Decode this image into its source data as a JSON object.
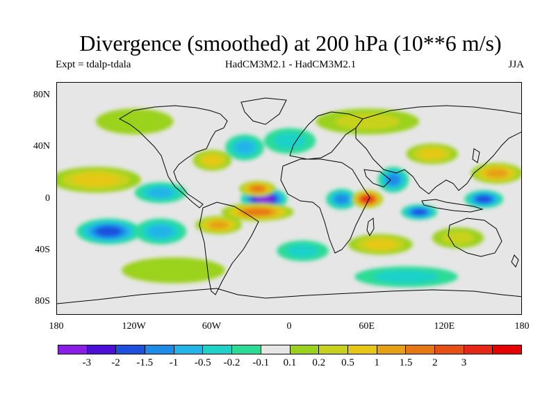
{
  "title": "Divergence (smoothed) at 200 hPa (10**6 m/s)",
  "subtitle_left": "Expt = tdalp-tdala",
  "subtitle_center": "HadCM3M2.1 - HadCM3M2.1",
  "subtitle_right": "JJA",
  "lat_ticks": [
    {
      "label": "80N",
      "value": 80
    },
    {
      "label": "40N",
      "value": 40
    },
    {
      "label": "0",
      "value": 0
    },
    {
      "label": "40S",
      "value": -40
    },
    {
      "label": "80S",
      "value": -80
    }
  ],
  "lon_ticks": [
    {
      "label": "180",
      "value": -180
    },
    {
      "label": "120W",
      "value": -120
    },
    {
      "label": "60W",
      "value": -60
    },
    {
      "label": "0",
      "value": 0
    },
    {
      "label": "60E",
      "value": 60
    },
    {
      "label": "120E",
      "value": 120
    },
    {
      "label": "180",
      "value": 180
    }
  ],
  "colorbar": {
    "colors": [
      "#8a1ee6",
      "#4b0fd8",
      "#1e50e0",
      "#1e8ce6",
      "#23b4e8",
      "#1ed2c8",
      "#2adc96",
      "#e6e6e6",
      "#9bd21e",
      "#c8d21e",
      "#e6c814",
      "#e6a014",
      "#e67814",
      "#e65014",
      "#e62814",
      "#e60000"
    ],
    "labels": [
      "-3",
      "-2",
      "-1.5",
      "-1",
      "-0.5",
      "-0.2",
      "-0.1",
      "0.1",
      "0.2",
      "0.5",
      "1",
      "1.5",
      "2",
      "3"
    ]
  },
  "map": {
    "background_color": "#e6e6e6",
    "field": [
      {
        "lon": -20,
        "lat": 0,
        "value": -3.2,
        "rx": 18,
        "ry": 9
      },
      {
        "lon": -25,
        "lat": 8,
        "value": 1.6,
        "rx": 14,
        "ry": 6
      },
      {
        "lon": -25,
        "lat": -10,
        "value": 1.8,
        "rx": 28,
        "ry": 7
      },
      {
        "lon": -55,
        "lat": -20,
        "value": 1.2,
        "rx": 18,
        "ry": 7
      },
      {
        "lon": 40,
        "lat": 0,
        "value": -1.2,
        "rx": 12,
        "ry": 8
      },
      {
        "lon": 60,
        "lat": 0,
        "value": 3.2,
        "rx": 12,
        "ry": 7
      },
      {
        "lon": 80,
        "lat": 15,
        "value": -1.0,
        "rx": 12,
        "ry": 10
      },
      {
        "lon": 100,
        "lat": -10,
        "value": -1.5,
        "rx": 14,
        "ry": 6
      },
      {
        "lon": 150,
        "lat": 0,
        "value": -1.5,
        "rx": 15,
        "ry": 7
      },
      {
        "lon": 160,
        "lat": 20,
        "value": 1.2,
        "rx": 20,
        "ry": 8
      },
      {
        "lon": 110,
        "lat": 35,
        "value": 1.0,
        "rx": 20,
        "ry": 8
      },
      {
        "lon": -150,
        "lat": 15,
        "value": 1.0,
        "rx": 35,
        "ry": 10
      },
      {
        "lon": -140,
        "lat": -25,
        "value": -1.5,
        "rx": 25,
        "ry": 10
      },
      {
        "lon": -100,
        "lat": -25,
        "value": -0.5,
        "rx": 20,
        "ry": 10
      },
      {
        "lon": -100,
        "lat": 5,
        "value": -0.8,
        "rx": 20,
        "ry": 8
      },
      {
        "lon": -60,
        "lat": 30,
        "value": 1.0,
        "rx": 15,
        "ry": 8
      },
      {
        "lon": -35,
        "lat": 40,
        "value": -0.5,
        "rx": 15,
        "ry": 10
      },
      {
        "lon": 0,
        "lat": 45,
        "value": -0.3,
        "rx": 20,
        "ry": 10
      },
      {
        "lon": 70,
        "lat": -35,
        "value": 1.0,
        "rx": 25,
        "ry": 8
      },
      {
        "lon": 130,
        "lat": -30,
        "value": 0.5,
        "rx": 20,
        "ry": 8
      },
      {
        "lon": 10,
        "lat": -40,
        "value": -0.3,
        "rx": 20,
        "ry": 8
      },
      {
        "lon": -90,
        "lat": -55,
        "value": 0.2,
        "rx": 40,
        "ry": 10
      },
      {
        "lon": 90,
        "lat": -60,
        "value": -0.2,
        "rx": 40,
        "ry": 8
      },
      {
        "lon": 60,
        "lat": 60,
        "value": 0.3,
        "rx": 40,
        "ry": 10
      },
      {
        "lon": -120,
        "lat": 60,
        "value": 0.2,
        "rx": 30,
        "ry": 10
      }
    ]
  }
}
